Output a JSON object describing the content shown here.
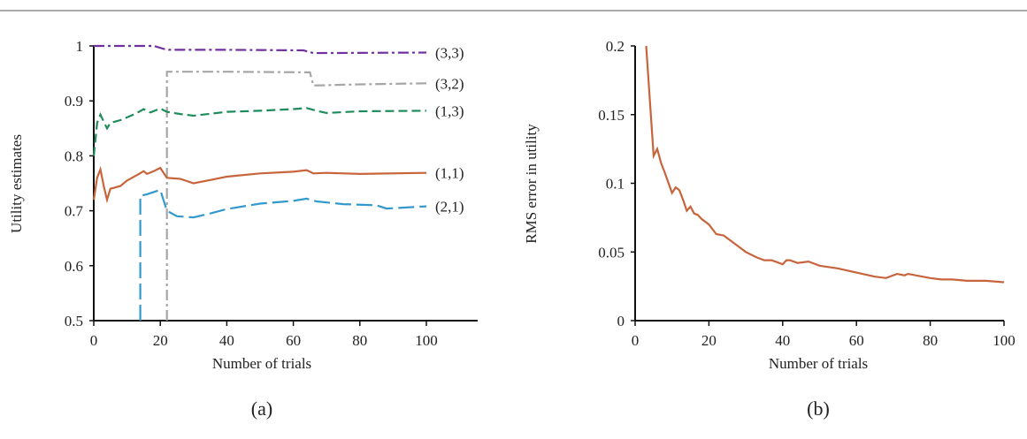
{
  "chart_data": [
    {
      "type": "line",
      "caption": "(a)",
      "xlabel": "Number of trials",
      "ylabel": "Utility estimates",
      "xlim": [
        0,
        100
      ],
      "ylim": [
        0.5,
        1
      ],
      "xticks": [
        "0",
        "20",
        "40",
        "60",
        "80",
        "100"
      ],
      "yticks": [
        "0.5",
        "0.6",
        "0.7",
        "0.8",
        "0.9",
        "1"
      ],
      "grid": false,
      "series": [
        {
          "name": "(3,3)",
          "color": "#7030A0",
          "style": "dashdot",
          "x": [
            0,
            18,
            22,
            40,
            63,
            66,
            100
          ],
          "y": [
            1.0,
            1.0,
            0.993,
            0.993,
            0.992,
            0.987,
            0.988
          ]
        },
        {
          "name": "(3,2)",
          "color": "#A6A6A6",
          "style": "dashdot",
          "x": [
            22,
            22,
            40,
            65,
            66,
            80,
            100
          ],
          "y": [
            0.5,
            0.953,
            0.953,
            0.952,
            0.928,
            0.93,
            0.932
          ]
        },
        {
          "name": "(1,3)",
          "color": "#1E8C5A",
          "style": "dash",
          "x": [
            0,
            1,
            2,
            3,
            4,
            5,
            8,
            10,
            13,
            15,
            17,
            20,
            22,
            26,
            30,
            40,
            50,
            60,
            64,
            67,
            70,
            80,
            100
          ],
          "y": [
            0.8,
            0.86,
            0.875,
            0.862,
            0.85,
            0.86,
            0.865,
            0.87,
            0.878,
            0.885,
            0.879,
            0.886,
            0.88,
            0.876,
            0.873,
            0.88,
            0.882,
            0.885,
            0.887,
            0.882,
            0.878,
            0.881,
            0.882
          ]
        },
        {
          "name": "(1,1)",
          "color": "#C8643C",
          "style": "solid",
          "x": [
            0,
            1,
            2,
            3,
            4,
            5,
            8,
            10,
            13,
            15,
            16,
            18,
            20,
            22,
            26,
            30,
            35,
            40,
            50,
            60,
            64,
            66,
            70,
            80,
            100
          ],
          "y": [
            0.72,
            0.76,
            0.775,
            0.745,
            0.72,
            0.74,
            0.745,
            0.755,
            0.765,
            0.772,
            0.767,
            0.772,
            0.778,
            0.76,
            0.758,
            0.75,
            0.756,
            0.762,
            0.768,
            0.771,
            0.774,
            0.768,
            0.769,
            0.767,
            0.769
          ]
        },
        {
          "name": "(2,1)",
          "color": "#3399CC",
          "style": "longdash",
          "x": [
            14,
            14,
            16,
            19,
            20,
            22,
            25,
            30,
            35,
            40,
            50,
            60,
            64,
            67,
            75,
            85,
            88,
            100
          ],
          "y": [
            0.5,
            0.727,
            0.73,
            0.736,
            0.738,
            0.7,
            0.69,
            0.688,
            0.695,
            0.703,
            0.713,
            0.718,
            0.722,
            0.717,
            0.712,
            0.71,
            0.704,
            0.708
          ]
        }
      ]
    },
    {
      "type": "line",
      "caption": "(b)",
      "xlabel": "Number of trials",
      "ylabel": "RMS error in utility",
      "xlim": [
        0,
        100
      ],
      "ylim": [
        0,
        0.2
      ],
      "xticks": [
        "0",
        "20",
        "40",
        "60",
        "80",
        "100"
      ],
      "yticks": [
        "0",
        "0.05",
        "0.1",
        "0.15",
        "0.2"
      ],
      "grid": false,
      "series": [
        {
          "name": "RMS error",
          "color": "#C8643C",
          "style": "solid",
          "x": [
            3,
            4,
            5,
            6,
            7,
            8,
            10,
            11,
            12,
            13,
            14,
            15,
            16,
            17,
            18,
            20,
            22,
            24,
            25,
            28,
            30,
            33,
            35,
            37,
            40,
            41,
            42,
            44,
            47,
            50,
            55,
            60,
            65,
            68,
            71,
            73,
            74,
            80,
            83,
            86,
            90,
            93,
            95,
            100
          ],
          "y": [
            0.2,
            0.16,
            0.12,
            0.125,
            0.115,
            0.108,
            0.093,
            0.097,
            0.095,
            0.088,
            0.08,
            0.083,
            0.078,
            0.077,
            0.074,
            0.07,
            0.063,
            0.062,
            0.06,
            0.054,
            0.05,
            0.046,
            0.044,
            0.044,
            0.041,
            0.044,
            0.044,
            0.042,
            0.043,
            0.04,
            0.038,
            0.035,
            0.032,
            0.031,
            0.034,
            0.033,
            0.034,
            0.031,
            0.03,
            0.03,
            0.029,
            0.029,
            0.029,
            0.028
          ]
        }
      ]
    }
  ]
}
